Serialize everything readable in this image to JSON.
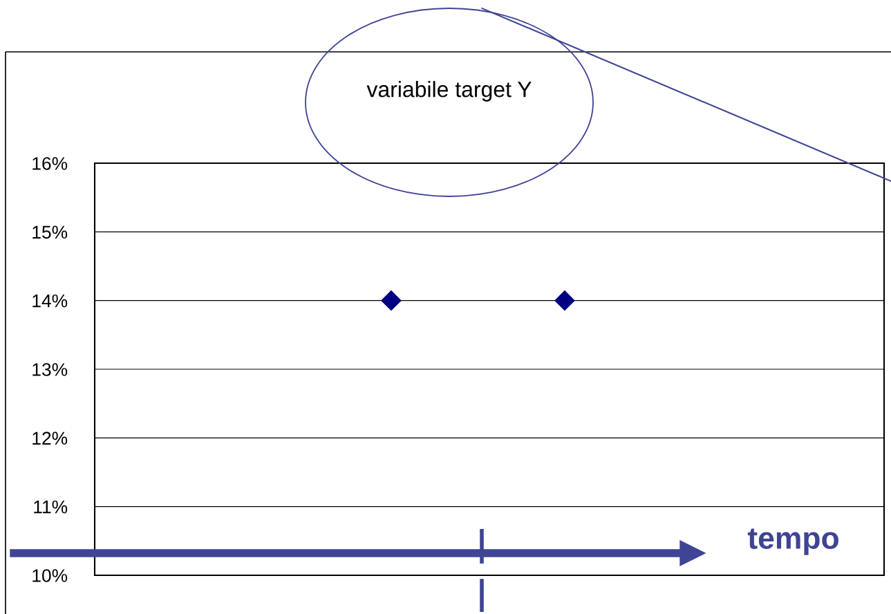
{
  "chart_data": {
    "type": "scatter",
    "categories": [
      null,
      null
    ],
    "series": [
      {
        "color": "#000080",
        "values": [
          14,
          14
        ]
      }
    ],
    "marker": "diamond",
    "ylim": [
      10,
      16
    ],
    "yticks": [
      {
        "value": 10,
        "label": "10%"
      },
      {
        "value": 11,
        "label": "11%"
      },
      {
        "value": 12,
        "label": "12%"
      },
      {
        "value": 13,
        "label": "13%"
      },
      {
        "value": 14,
        "label": "14%"
      },
      {
        "value": 15,
        "label": "15%"
      },
      {
        "value": 16,
        "label": "16%"
      }
    ],
    "grid": "y",
    "tick_labels": "y",
    "annotations": [
      "variabile target Y",
      "tempo"
    ]
  }
}
